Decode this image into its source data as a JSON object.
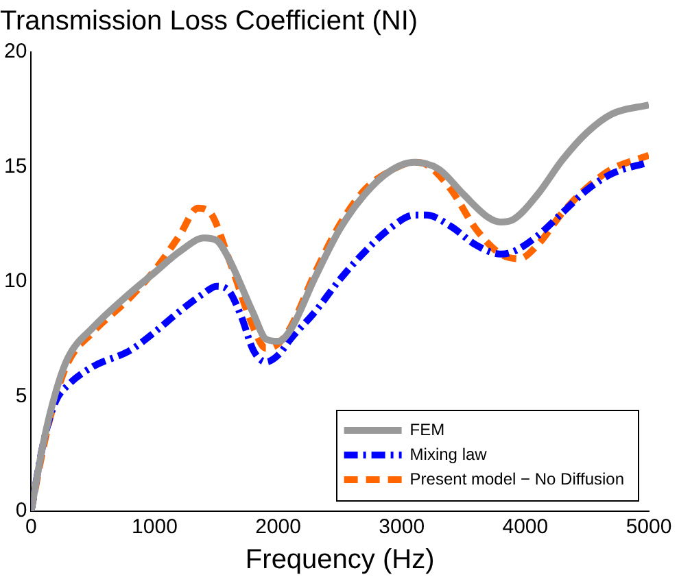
{
  "chart_data": {
    "type": "line",
    "title": "Transmission Loss Coefficient (NI)",
    "xlabel": "Frequency (Hz)",
    "xlim": [
      0,
      5000
    ],
    "xticks": [
      0,
      1000,
      2000,
      3000,
      4000,
      5000
    ],
    "ylim": [
      0,
      20
    ],
    "yticks": [
      0,
      5,
      10,
      15,
      20
    ],
    "grid": false,
    "legend": "bottom right",
    "marker": "none",
    "series": [
      {
        "name": "FEM",
        "color": "#999999",
        "line_style": "solid",
        "x": [
          0,
          100,
          200,
          300,
          500,
          800,
          1000,
          1200,
          1400,
          1500,
          1600,
          1800,
          1900,
          2000,
          2100,
          2300,
          2500,
          2700,
          2900,
          3100,
          3300,
          3500,
          3700,
          3800,
          3900,
          4100,
          4300,
          4500,
          4700,
          5000
        ],
        "values": [
          0,
          3,
          5.2,
          6.7,
          8,
          9.5,
          10.4,
          11.3,
          11.9,
          11.8,
          11,
          8.6,
          7.5,
          7.4,
          7.9,
          10.2,
          12.3,
          13.8,
          14.8,
          15.2,
          14.9,
          13.8,
          12.8,
          12.6,
          12.7,
          13.8,
          15.3,
          16.5,
          17.3,
          17.7
        ]
      },
      {
        "name": "Mixing law",
        "color": "#0000ff",
        "line_style": "dashdot",
        "x": [
          0,
          100,
          200,
          300,
          500,
          800,
          1000,
          1200,
          1400,
          1500,
          1600,
          1700,
          1800,
          1900,
          2000,
          2100,
          2300,
          2500,
          2700,
          2900,
          3100,
          3200,
          3400,
          3600,
          3800,
          3900,
          4100,
          4300,
          4500,
          4700,
          5000
        ],
        "values": [
          0,
          3,
          4.8,
          5.5,
          6.3,
          7,
          7.8,
          8.7,
          9.5,
          9.8,
          9.6,
          8.5,
          7,
          6.5,
          6.8,
          7.5,
          8.7,
          10.1,
          11.3,
          12.3,
          12.9,
          12.9,
          12.4,
          11.6,
          11.2,
          11.3,
          12,
          13,
          14,
          14.7,
          15.2
        ]
      },
      {
        "name": "Present model − No Diffusion",
        "color": "#ff6600",
        "line_style": "dashed",
        "x": [
          0,
          100,
          200,
          300,
          500,
          800,
          1000,
          1200,
          1350,
          1450,
          1600,
          1800,
          1900,
          2000,
          2100,
          2300,
          2500,
          2700,
          2900,
          3100,
          3200,
          3400,
          3600,
          3800,
          3950,
          4100,
          4300,
          4500,
          4700,
          5000
        ],
        "values": [
          0,
          2.8,
          5,
          6.5,
          7.8,
          9.3,
          10.5,
          12,
          13.2,
          13,
          11,
          8,
          7.1,
          7.3,
          8,
          10.4,
          12.5,
          14,
          14.8,
          15.2,
          15.1,
          14,
          12.3,
          11.2,
          11,
          11.6,
          13,
          14.1,
          14.9,
          15.5
        ]
      }
    ]
  }
}
